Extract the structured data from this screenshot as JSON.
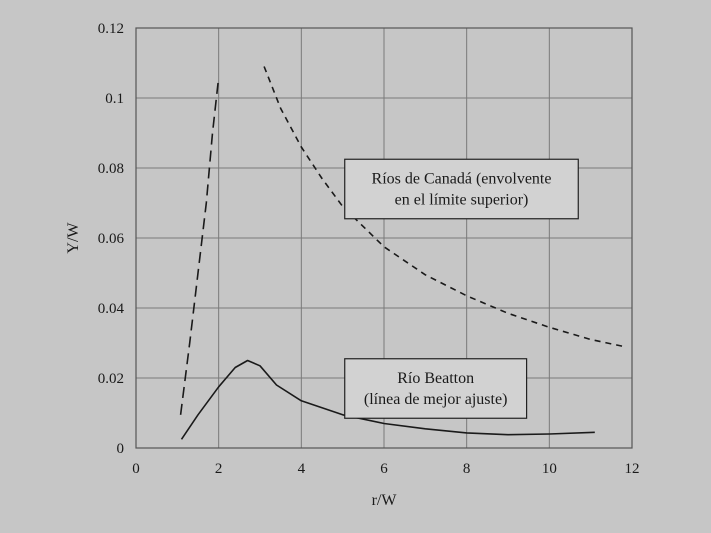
{
  "chart_data": {
    "type": "line",
    "title": "",
    "xlabel": "r/W",
    "ylabel": "Y/W",
    "xlim": [
      0,
      12
    ],
    "ylim": [
      0,
      0.12
    ],
    "x_ticks": [
      0,
      2,
      4,
      6,
      8,
      10,
      12
    ],
    "x_tick_labels": [
      "0",
      "2",
      "4",
      "6",
      "8",
      "10",
      "12"
    ],
    "y_ticks": [
      0,
      0.02,
      0.04,
      0.06,
      0.08,
      0.1,
      0.12
    ],
    "y_tick_labels": [
      "0",
      "0.02",
      "0.04",
      "0.06",
      "0.08",
      "0.1",
      "0.12"
    ],
    "grid": true,
    "series": [
      {
        "style": "long-dash",
        "color": "#1a1a1a",
        "points": [
          [
            1.08,
            0.0095
          ],
          [
            1.3,
            0.03
          ],
          [
            1.5,
            0.05
          ],
          [
            1.7,
            0.07
          ],
          [
            1.85,
            0.09
          ],
          [
            2.0,
            0.106
          ]
        ]
      },
      {
        "style": "short-dash",
        "color": "#1a1a1a",
        "points": [
          [
            3.1,
            0.109
          ],
          [
            3.5,
            0.097
          ],
          [
            4.0,
            0.086
          ],
          [
            4.5,
            0.077
          ],
          [
            5.0,
            0.069
          ],
          [
            6.0,
            0.0575
          ],
          [
            7.0,
            0.0495
          ],
          [
            8.0,
            0.0435
          ],
          [
            9.0,
            0.0385
          ],
          [
            10.0,
            0.0345
          ],
          [
            11.0,
            0.031
          ],
          [
            11.8,
            0.029
          ]
        ]
      },
      {
        "style": "solid",
        "color": "#1a1a1a",
        "points": [
          [
            1.1,
            0.0025
          ],
          [
            1.5,
            0.0095
          ],
          [
            2.0,
            0.0175
          ],
          [
            2.4,
            0.023
          ],
          [
            2.7,
            0.025
          ],
          [
            3.0,
            0.0235
          ],
          [
            3.4,
            0.018
          ],
          [
            4.0,
            0.0135
          ],
          [
            5.0,
            0.0095
          ],
          [
            6.0,
            0.007
          ],
          [
            7.0,
            0.0055
          ],
          [
            8.0,
            0.0043
          ],
          [
            9.0,
            0.0038
          ],
          [
            10.0,
            0.004
          ],
          [
            11.1,
            0.0045
          ]
        ]
      }
    ],
    "annotations": [
      {
        "lines": [
          "Ríos de Canadá (envolvente",
          "en el límite superior)"
        ],
        "box": {
          "x0": 5.05,
          "x1": 10.7,
          "y0": 0.0655,
          "y1": 0.0825
        }
      },
      {
        "lines": [
          "Río Beatton",
          "(línea de mejor ajuste)"
        ],
        "box": {
          "x0": 5.05,
          "x1": 9.45,
          "y0": 0.0085,
          "y1": 0.0255
        }
      }
    ]
  }
}
